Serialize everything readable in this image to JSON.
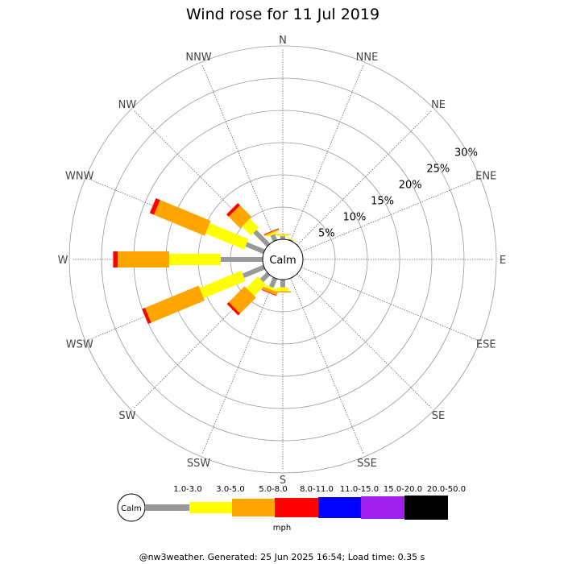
{
  "chart_data": {
    "type": "windrose",
    "title": "Wind rose for 11 Jul 2019",
    "directions": [
      "N",
      "NNE",
      "NE",
      "ENE",
      "E",
      "ESE",
      "SE",
      "SSE",
      "S",
      "SSW",
      "SW",
      "WSW",
      "W",
      "WNW",
      "NW",
      "NNW"
    ],
    "ring_labels": [
      "5%",
      "10%",
      "15%",
      "20%",
      "25%",
      "30%"
    ],
    "ring_values": [
      5,
      10,
      15,
      20,
      25,
      30
    ],
    "calm_label": "Calm",
    "speed_bins": [
      {
        "label": "1.0-3.0",
        "color": "#999999"
      },
      {
        "label": "3.0-5.0",
        "color": "#ffff00"
      },
      {
        "label": "5.0-8.0",
        "color": "#ffa500"
      },
      {
        "label": "8.0-11.0",
        "color": "#ff0000"
      },
      {
        "label": "11.0-15.0",
        "color": "#0000ff"
      },
      {
        "label": "15.0-20.0",
        "color": "#a020f0"
      },
      {
        "label": "20.0-50.0",
        "color": "#000000"
      }
    ],
    "units": "mph",
    "series": [
      {
        "direction": "N",
        "cumulative_percent": [
          0.5,
          0.7,
          0.8,
          0.8,
          0.8,
          0.8,
          0.8
        ]
      },
      {
        "direction": "NNE",
        "cumulative_percent": [
          0.2,
          0.3,
          0.3,
          0.3,
          0.3,
          0.3,
          0.3
        ]
      },
      {
        "direction": "NE",
        "cumulative_percent": [
          0.1,
          0.1,
          0.1,
          0.1,
          0.1,
          0.1,
          0.1
        ]
      },
      {
        "direction": "ENE",
        "cumulative_percent": [
          0.0,
          0.0,
          0.0,
          0.0,
          0.0,
          0.0,
          0.0
        ]
      },
      {
        "direction": "E",
        "cumulative_percent": [
          0.0,
          0.0,
          0.0,
          0.0,
          0.0,
          0.0,
          0.0
        ]
      },
      {
        "direction": "ESE",
        "cumulative_percent": [
          0.0,
          0.0,
          0.0,
          0.0,
          0.0,
          0.0,
          0.0
        ]
      },
      {
        "direction": "SE",
        "cumulative_percent": [
          0.0,
          0.0,
          0.0,
          0.0,
          0.0,
          0.0,
          0.0
        ]
      },
      {
        "direction": "SSE",
        "cumulative_percent": [
          0.1,
          0.1,
          0.1,
          0.1,
          0.1,
          0.1,
          0.1
        ]
      },
      {
        "direction": "S",
        "cumulative_percent": [
          1.2,
          1.8,
          2.0,
          2.0,
          2.0,
          2.0,
          2.0
        ]
      },
      {
        "direction": "SSW",
        "cumulative_percent": [
          1.5,
          1.9,
          2.4,
          2.5,
          2.5,
          2.5,
          2.5
        ]
      },
      {
        "direction": "SW",
        "cumulative_percent": [
          1.5,
          4.0,
          7.5,
          7.9,
          7.9,
          7.9,
          7.9
        ]
      },
      {
        "direction": "WSW",
        "cumulative_percent": [
          3.5,
          10.5,
          19.5,
          20.0,
          20.0,
          20.0,
          20.0
        ]
      },
      {
        "direction": "W",
        "cumulative_percent": [
          6.5,
          14.5,
          22.5,
          23.2,
          23.2,
          23.2,
          23.2
        ]
      },
      {
        "direction": "WNW",
        "cumulative_percent": [
          3.0,
          9.5,
          18.0,
          18.7,
          18.7,
          18.7,
          18.7
        ]
      },
      {
        "direction": "NW",
        "cumulative_percent": [
          3.0,
          5.0,
          7.5,
          8.0,
          8.0,
          8.0,
          8.0
        ]
      },
      {
        "direction": "NNW",
        "cumulative_percent": [
          1.0,
          1.3,
          1.5,
          1.6,
          1.6,
          1.6,
          1.6
        ]
      }
    ]
  },
  "footer": "@nw3weather. Generated: 25 Jun 2025 16:54; Load time: 0.35 s"
}
